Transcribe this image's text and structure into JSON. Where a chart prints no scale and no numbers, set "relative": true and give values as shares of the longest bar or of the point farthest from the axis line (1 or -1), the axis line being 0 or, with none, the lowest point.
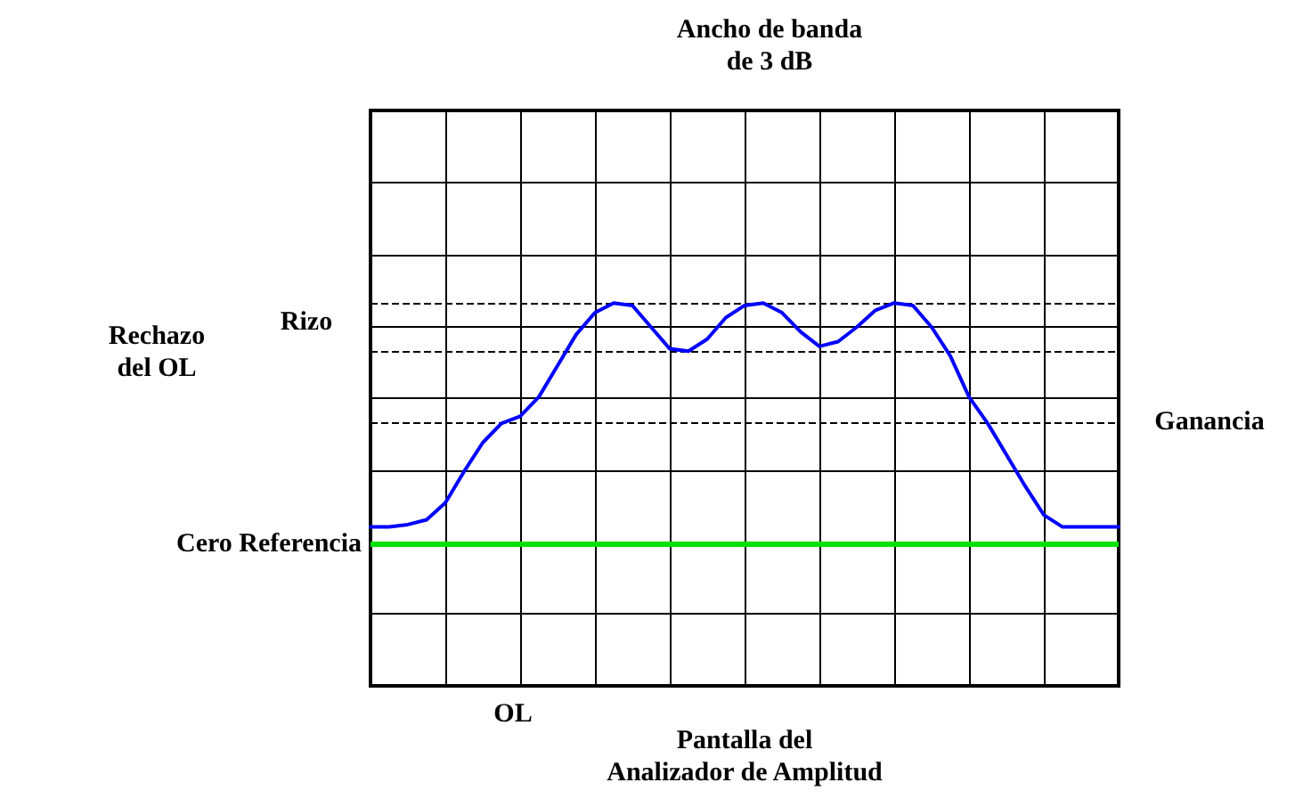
{
  "chart_data": {
    "type": "line",
    "relative": true,
    "categories": [
      null,
      null,
      null,
      null,
      null,
      null,
      null,
      null,
      null,
      null,
      null,
      null,
      null,
      null,
      null,
      null,
      null,
      null,
      null,
      null,
      null,
      null,
      null,
      null,
      null,
      null,
      null,
      null,
      null,
      null,
      null,
      null,
      null,
      null,
      null,
      null,
      null,
      null,
      null,
      null,
      null
    ],
    "series": [
      {
        "color": "#0000ff",
        "values": [
          0.07,
          0.07,
          0.08,
          0.1,
          0.17,
          0.3,
          0.42,
          0.5,
          0.53,
          0.61,
          0.74,
          0.87,
          0.96,
          1.0,
          0.99,
          0.9,
          0.81,
          0.8,
          0.85,
          0.94,
          0.99,
          1.0,
          0.96,
          0.88,
          0.82,
          0.84,
          0.9,
          0.97,
          1.0,
          0.99,
          0.9,
          0.78,
          0.61,
          0.5,
          0.37,
          0.24,
          0.12,
          0.07,
          0.07,
          0.07,
          0.07
        ]
      }
    ],
    "ref_lines": [
      {
        "axis": "y",
        "value": 0,
        "label": "Cero Referencia",
        "color": "#00e000",
        "line_style": "solid"
      },
      {
        "axis": "y",
        "value": 1,
        "label": null,
        "color": "#000000",
        "line_style": "dashed"
      },
      {
        "axis": "y",
        "value": 0.8,
        "label": null,
        "color": "#000000",
        "line_style": "dashed"
      },
      {
        "axis": "y",
        "value": 0.5,
        "label": null,
        "color": "#000000",
        "line_style": "dashed"
      }
    ],
    "annotations": [
      "Ancho de banda\nde 3 dB",
      "Rizo",
      "Rechazo\ndel OL",
      "Ganancia",
      "OL",
      "Pantalla del\nAnalizador de Amplitud"
    ],
    "grid": true,
    "marker": "none",
    "line_style": "solid"
  }
}
